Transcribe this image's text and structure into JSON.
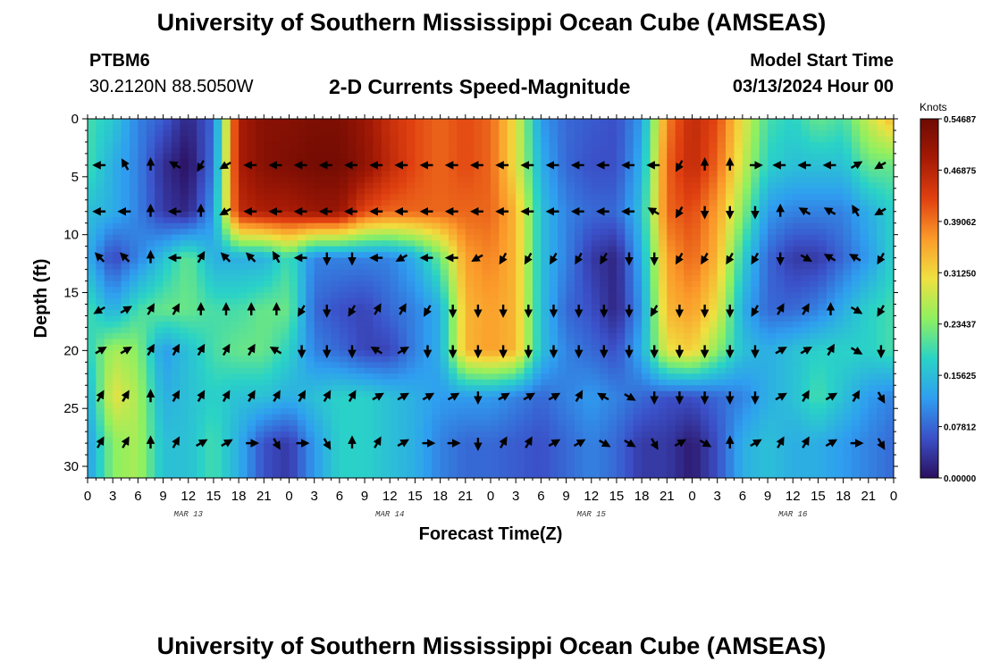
{
  "header": {
    "title": "University of Southern Mississippi Ocean Cube (AMSEAS)",
    "station_id": "PTBM6",
    "station_coords": "30.2120N  88.5050W",
    "plot_title": "2-D Currents Speed-Magnitude",
    "model_start_label": "Model Start Time",
    "model_start_value": "03/13/2024 Hour 00"
  },
  "footer": {
    "title": "University of Southern Mississippi Ocean Cube (AMSEAS)"
  },
  "chart_data": {
    "type": "heatmap",
    "title": "2-D Currents Speed-Magnitude",
    "xlabel": "Forecast Time(Z)",
    "ylabel": "Depth (ft)",
    "x_hours_range": [
      0,
      96
    ],
    "x_tick_labels": [
      "0",
      "3",
      "6",
      "9",
      "12",
      "15",
      "18",
      "21",
      "0",
      "3",
      "6",
      "9",
      "12",
      "15",
      "18",
      "21",
      "0",
      "3",
      "6",
      "9",
      "12",
      "15",
      "18",
      "21",
      "0",
      "3",
      "6",
      "9",
      "12",
      "15",
      "18",
      "21",
      "0"
    ],
    "date_labels": [
      {
        "label": "MAR 13",
        "hour": 12
      },
      {
        "label": "MAR 14",
        "hour": 36
      },
      {
        "label": "MAR 15",
        "hour": 60
      },
      {
        "label": "MAR 16",
        "hour": 84
      }
    ],
    "y_range": [
      0,
      31
    ],
    "y_ticks": [
      0,
      5,
      10,
      15,
      20,
      25,
      30
    ],
    "depth_levels_ft": [
      0,
      4,
      8,
      12,
      16.5,
      20,
      24,
      28
    ],
    "value_range": [
      0.0,
      0.546875
    ],
    "colorbar": {
      "unit": "Knots",
      "tick_labels": [
        "0.54687",
        "0.46875",
        "0.39062",
        "0.31250",
        "0.23437",
        "0.15625",
        "0.07812",
        "0.00000"
      ],
      "tick_values": [
        0.546875,
        0.46875,
        0.390625,
        0.3125,
        0.234375,
        0.15625,
        0.078125,
        0.0
      ],
      "colors": [
        "#2b0f5e",
        "#3b50c8",
        "#2f9ef0",
        "#2ad3c6",
        "#8ff060",
        "#f0e040",
        "#fb9a2a",
        "#e04010",
        "#a51a05",
        "#6e0a03"
      ]
    },
    "speed_rows": [
      [
        0.2,
        0.17,
        0.1,
        0.07,
        0.02,
        0.08,
        0.48,
        0.52,
        0.52,
        0.53,
        0.53,
        0.5,
        0.45,
        0.42,
        0.4,
        0.42,
        0.4,
        0.3,
        0.12,
        0.08,
        0.07,
        0.06,
        0.12,
        0.38,
        0.46,
        0.42,
        0.3,
        0.2,
        0.18,
        0.22,
        0.2,
        0.28,
        0.34
      ],
      [
        0.2,
        0.14,
        0.1,
        0.03,
        0.0,
        0.09,
        0.48,
        0.52,
        0.53,
        0.54,
        0.54,
        0.51,
        0.46,
        0.42,
        0.4,
        0.42,
        0.4,
        0.3,
        0.14,
        0.08,
        0.06,
        0.06,
        0.14,
        0.4,
        0.46,
        0.4,
        0.28,
        0.18,
        0.16,
        0.16,
        0.16,
        0.22,
        0.22
      ],
      [
        0.16,
        0.14,
        0.1,
        0.04,
        0.02,
        0.12,
        0.46,
        0.48,
        0.48,
        0.5,
        0.5,
        0.42,
        0.4,
        0.4,
        0.4,
        0.4,
        0.4,
        0.34,
        0.16,
        0.1,
        0.08,
        0.08,
        0.16,
        0.4,
        0.42,
        0.36,
        0.24,
        0.12,
        0.1,
        0.1,
        0.1,
        0.14,
        0.18
      ],
      [
        0.14,
        0.05,
        0.1,
        0.16,
        0.22,
        0.14,
        0.14,
        0.14,
        0.2,
        0.1,
        0.1,
        0.1,
        0.1,
        0.14,
        0.22,
        0.36,
        0.38,
        0.34,
        0.16,
        0.1,
        0.04,
        0.02,
        0.14,
        0.36,
        0.4,
        0.34,
        0.18,
        0.08,
        0.04,
        0.04,
        0.08,
        0.12,
        0.18
      ],
      [
        0.2,
        0.14,
        0.2,
        0.22,
        0.22,
        0.2,
        0.2,
        0.22,
        0.22,
        0.08,
        0.06,
        0.05,
        0.08,
        0.1,
        0.14,
        0.34,
        0.36,
        0.34,
        0.16,
        0.08,
        0.06,
        0.02,
        0.12,
        0.34,
        0.36,
        0.3,
        0.14,
        0.08,
        0.08,
        0.1,
        0.14,
        0.18,
        0.2
      ],
      [
        0.18,
        0.26,
        0.24,
        0.12,
        0.16,
        0.2,
        0.22,
        0.22,
        0.18,
        0.1,
        0.08,
        0.05,
        0.05,
        0.1,
        0.14,
        0.34,
        0.36,
        0.34,
        0.16,
        0.1,
        0.08,
        0.06,
        0.14,
        0.3,
        0.32,
        0.24,
        0.16,
        0.14,
        0.16,
        0.18,
        0.18,
        0.18,
        0.2
      ],
      [
        0.14,
        0.3,
        0.26,
        0.14,
        0.16,
        0.18,
        0.16,
        0.16,
        0.14,
        0.16,
        0.18,
        0.18,
        0.16,
        0.14,
        0.12,
        0.12,
        0.12,
        0.1,
        0.08,
        0.1,
        0.12,
        0.1,
        0.08,
        0.06,
        0.06,
        0.08,
        0.1,
        0.14,
        0.16,
        0.2,
        0.16,
        0.12,
        0.1
      ],
      [
        0.12,
        0.24,
        0.26,
        0.16,
        0.16,
        0.2,
        0.14,
        0.06,
        0.04,
        0.12,
        0.18,
        0.18,
        0.16,
        0.14,
        0.1,
        0.08,
        0.08,
        0.07,
        0.06,
        0.08,
        0.1,
        0.08,
        0.04,
        0.04,
        0.01,
        0.06,
        0.14,
        0.16,
        0.14,
        0.14,
        0.12,
        0.1,
        0.08
      ]
    ],
    "vector_rows": {
      "depths_ft": [
        4,
        8,
        12,
        16.5,
        20,
        24,
        28
      ],
      "directions_deg": [
        [
          270,
          330,
          0,
          300,
          210,
          240,
          270,
          270,
          270,
          270,
          270,
          270,
          270,
          270,
          270,
          270,
          270,
          270,
          270,
          270,
          270,
          270,
          270,
          210,
          0,
          0,
          90,
          270,
          270,
          270,
          60,
          240
        ],
        [
          270,
          270,
          0,
          270,
          0,
          240,
          270,
          270,
          270,
          270,
          270,
          270,
          270,
          270,
          270,
          270,
          270,
          270,
          270,
          270,
          270,
          270,
          300,
          210,
          180,
          180,
          180,
          0,
          300,
          300,
          330,
          240
        ],
        [
          315,
          315,
          0,
          270,
          30,
          315,
          315,
          330,
          270,
          180,
          180,
          270,
          240,
          270,
          270,
          240,
          210,
          210,
          210,
          210,
          210,
          180,
          180,
          210,
          210,
          210,
          210,
          180,
          120,
          300,
          300,
          210
        ],
        [
          240,
          60,
          30,
          30,
          0,
          0,
          0,
          0,
          210,
          180,
          210,
          30,
          30,
          210,
          180,
          180,
          180,
          180,
          180,
          180,
          180,
          180,
          210,
          180,
          180,
          180,
          210,
          30,
          30,
          0,
          120,
          210
        ],
        [
          60,
          60,
          30,
          30,
          30,
          30,
          30,
          300,
          180,
          180,
          180,
          300,
          60,
          180,
          180,
          180,
          180,
          180,
          180,
          180,
          180,
          180,
          180,
          180,
          180,
          180,
          180,
          60,
          60,
          30,
          120,
          180
        ],
        [
          30,
          30,
          0,
          30,
          30,
          30,
          30,
          30,
          30,
          30,
          30,
          60,
          60,
          60,
          60,
          180,
          60,
          60,
          60,
          30,
          300,
          120,
          180,
          180,
          180,
          180,
          180,
          60,
          30,
          60,
          30,
          150
        ],
        [
          30,
          30,
          0,
          30,
          60,
          60,
          90,
          150,
          90,
          150,
          0,
          30,
          60,
          90,
          90,
          180,
          30,
          30,
          60,
          60,
          120,
          120,
          150,
          60,
          120,
          0,
          60,
          30,
          30,
          60,
          90,
          150
        ]
      ]
    }
  }
}
